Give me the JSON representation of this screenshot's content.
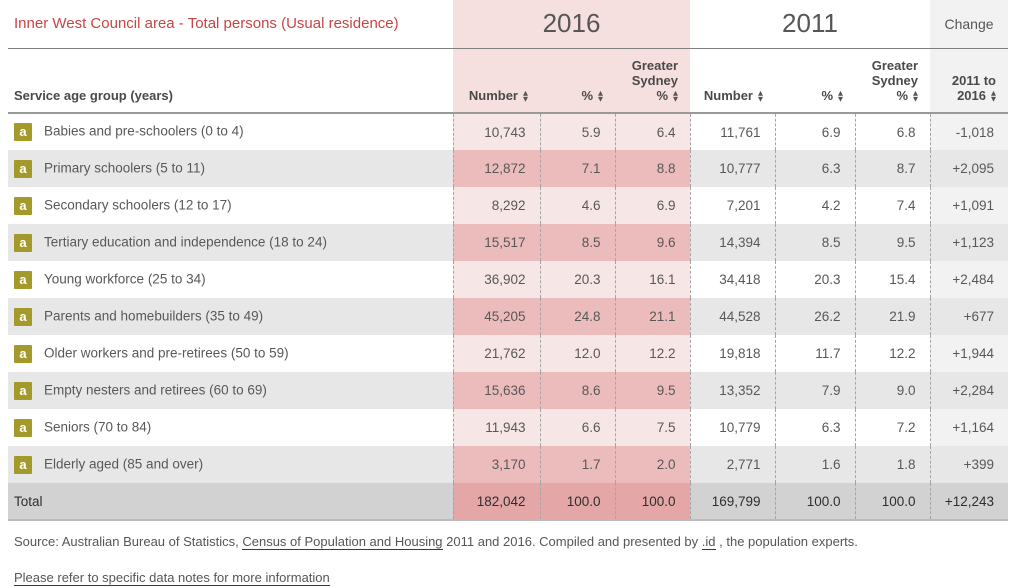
{
  "title": "Inner West Council area - Total persons (Usual residence)",
  "year_headers": {
    "y2016": "2016",
    "y2011": "2011",
    "change": "Change"
  },
  "columns": {
    "group": "Service age group (years)",
    "number": "Number",
    "percent": "%",
    "gs_line1": "Greater",
    "gs_line2": "Sydney",
    "gs_percent": "%",
    "change_line1": "2011 to",
    "change_line2": "2016"
  },
  "icons": {
    "badge": "a",
    "sort_up": "▲",
    "sort_down": "▼"
  },
  "rows": [
    {
      "label": "Babies and pre-schoolers (0 to 4)",
      "values": [
        "10,743",
        "5.9",
        "6.4",
        "11,761",
        "6.9",
        "6.8",
        "-1,018"
      ]
    },
    {
      "label": "Primary schoolers (5 to 11)",
      "values": [
        "12,872",
        "7.1",
        "8.8",
        "10,777",
        "6.3",
        "8.7",
        "+2,095"
      ]
    },
    {
      "label": "Secondary schoolers (12 to 17)",
      "values": [
        "8,292",
        "4.6",
        "6.9",
        "7,201",
        "4.2",
        "7.4",
        "+1,091"
      ]
    },
    {
      "label": "Tertiary education and independence (18 to 24)",
      "values": [
        "15,517",
        "8.5",
        "9.6",
        "14,394",
        "8.5",
        "9.5",
        "+1,123"
      ]
    },
    {
      "label": "Young workforce (25 to 34)",
      "values": [
        "36,902",
        "20.3",
        "16.1",
        "34,418",
        "20.3",
        "15.4",
        "+2,484"
      ]
    },
    {
      "label": "Parents and homebuilders (35 to 49)",
      "values": [
        "45,205",
        "24.8",
        "21.1",
        "44,528",
        "26.2",
        "21.9",
        "+677"
      ]
    },
    {
      "label": "Older workers and pre-retirees (50 to 59)",
      "values": [
        "21,762",
        "12.0",
        "12.2",
        "19,818",
        "11.7",
        "12.2",
        "+1,944"
      ]
    },
    {
      "label": "Empty nesters and retirees (60 to 69)",
      "values": [
        "15,636",
        "8.6",
        "9.5",
        "13,352",
        "7.9",
        "9.0",
        "+2,284"
      ]
    },
    {
      "label": "Seniors (70 to 84)",
      "values": [
        "11,943",
        "6.6",
        "7.5",
        "10,779",
        "6.3",
        "7.2",
        "+1,164"
      ]
    },
    {
      "label": "Elderly aged (85 and over)",
      "values": [
        "3,170",
        "1.7",
        "2.0",
        "2,771",
        "1.6",
        "1.8",
        "+399"
      ]
    }
  ],
  "total": {
    "label": "Total",
    "values": [
      "182,042",
      "100.0",
      "100.0",
      "169,799",
      "100.0",
      "100.0",
      "+12,243"
    ]
  },
  "footer": {
    "source_prefix": "Source: Australian Bureau of Statistics, ",
    "source_link1": "Census of Population and Housing",
    "source_mid": " 2011 and 2016. Compiled and presented by ",
    "source_link2": ".id",
    "source_suffix": " , the population experts.",
    "notes_link": "Please refer to specific data notes for more information"
  },
  "colors": {
    "accent_red": "#c74545",
    "pink_header": "#f6dfdf",
    "pink_row_odd": "#f7e6e6",
    "pink_row_even": "#ecbcbc",
    "pink_total": "#e4a6a6",
    "badge_olive": "#a49a2b",
    "row_gray": "#e7e7e7",
    "total_gray": "#d2d2d2"
  }
}
